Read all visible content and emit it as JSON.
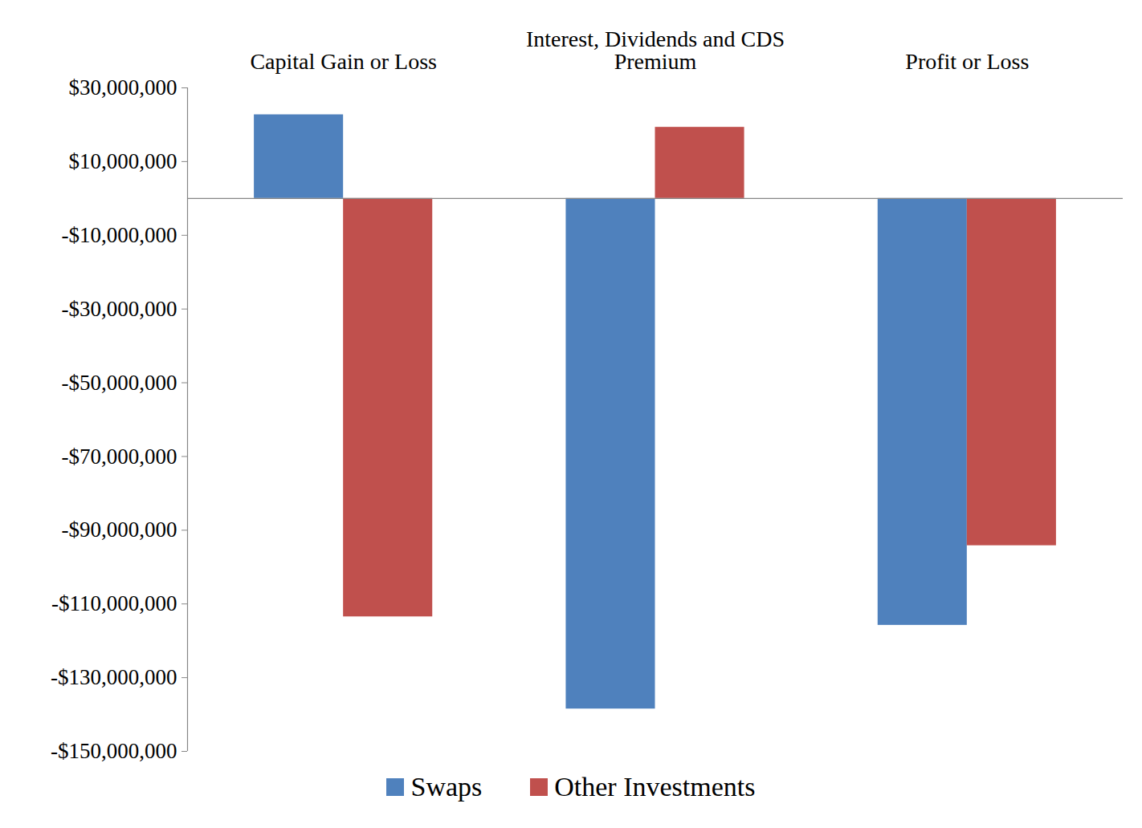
{
  "chart_data": {
    "type": "bar",
    "categories": [
      "Capital Gain or Loss",
      "Interest, Dividends and CDS Premium",
      "Profit or Loss"
    ],
    "series": [
      {
        "name": "Swaps",
        "color": "#4f81bd",
        "values": [
          22700000,
          -138500000,
          -115800000
        ]
      },
      {
        "name": "Other Investments",
        "color": "#c0504d",
        "values": [
          -113500000,
          19300000,
          -94200000
        ]
      }
    ],
    "ylim": [
      -150000000,
      30000000
    ],
    "yticks": [
      {
        "value": -150000000,
        "label": "-$150,000,000"
      },
      {
        "value": -130000000,
        "label": "-$130,000,000"
      },
      {
        "value": -110000000,
        "label": "-$110,000,000"
      },
      {
        "value": -90000000,
        "label": "-$90,000,000"
      },
      {
        "value": -70000000,
        "label": "-$70,000,000"
      },
      {
        "value": -50000000,
        "label": "-$50,000,000"
      },
      {
        "value": -30000000,
        "label": "-$30,000,000"
      },
      {
        "value": -10000000,
        "label": "-$10,000,000"
      },
      {
        "value": 10000000,
        "label": "$10,000,000"
      },
      {
        "value": 30000000,
        "label": "$30,000,000"
      }
    ],
    "grid": false,
    "legend": "bottom"
  }
}
